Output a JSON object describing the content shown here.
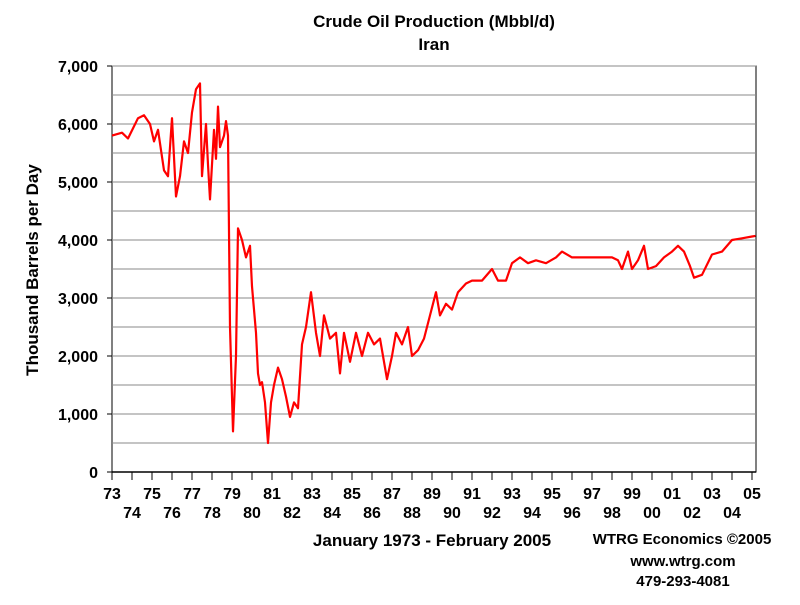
{
  "chart_data": {
    "type": "line",
    "title": "Crude Oil Production (Mbbl/d)",
    "subtitle": "Iran",
    "y_label": "Thousand Barrels per Day",
    "x_label": "January 1973 - February 2005",
    "annotations": [
      "WTRG Economics  ©2005",
      "www.wtrg.com",
      "479-293-4081"
    ],
    "xlim": [
      1973,
      2005.2
    ],
    "ylim": [
      0,
      7000
    ],
    "yticks": [
      0,
      {
        "value": 1000,
        "label": "1,000"
      },
      {
        "value": 2000,
        "label": "2,000"
      },
      {
        "value": 3000,
        "label": "3,000"
      },
      {
        "value": 4000,
        "label": "4,000"
      },
      {
        "value": 5000,
        "label": "5,000"
      },
      {
        "value": 6000,
        "label": "6,000"
      },
      {
        "value": 7000,
        "label": "7,000"
      }
    ],
    "yminor": [
      500,
      1500,
      2500,
      3500,
      4500,
      5500,
      6500
    ],
    "xticks": [
      {
        "value": 1973,
        "label": "73"
      },
      {
        "value": 1974,
        "label": "74"
      },
      {
        "value": 1975,
        "label": "75"
      },
      {
        "value": 1976,
        "label": "76"
      },
      {
        "value": 1977,
        "label": "77"
      },
      {
        "value": 1978,
        "label": "78"
      },
      {
        "value": 1979,
        "label": "79"
      },
      {
        "value": 1980,
        "label": "80"
      },
      {
        "value": 1981,
        "label": "81"
      },
      {
        "value": 1982,
        "label": "82"
      },
      {
        "value": 1983,
        "label": "83"
      },
      {
        "value": 1984,
        "label": "84"
      },
      {
        "value": 1985,
        "label": "85"
      },
      {
        "value": 1986,
        "label": "86"
      },
      {
        "value": 1987,
        "label": "87"
      },
      {
        "value": 1988,
        "label": "88"
      },
      {
        "value": 1989,
        "label": "89"
      },
      {
        "value": 1990,
        "label": "90"
      },
      {
        "value": 1991,
        "label": "91"
      },
      {
        "value": 1992,
        "label": "92"
      },
      {
        "value": 1993,
        "label": "93"
      },
      {
        "value": 1994,
        "label": "94"
      },
      {
        "value": 1995,
        "label": "95"
      },
      {
        "value": 1996,
        "label": "96"
      },
      {
        "value": 1997,
        "label": "97"
      },
      {
        "value": 1998,
        "label": "98"
      },
      {
        "value": 1999,
        "label": "99"
      },
      {
        "value": 2000,
        "label": "00"
      },
      {
        "value": 2001,
        "label": "01"
      },
      {
        "value": 2002,
        "label": "02"
      },
      {
        "value": 2003,
        "label": "03"
      },
      {
        "value": 2004,
        "label": "04"
      },
      {
        "value": 2005,
        "label": "05"
      }
    ],
    "grid": true,
    "x": [
      1973.0,
      1973.5,
      1973.8,
      1974.3,
      1974.6,
      1974.9,
      1975.1,
      1975.3,
      1975.6,
      1975.8,
      1976.0,
      1976.2,
      1976.4,
      1976.6,
      1976.8,
      1977.0,
      1977.2,
      1977.4,
      1977.5,
      1977.7,
      1977.8,
      1977.9,
      1978.1,
      1978.2,
      1978.3,
      1978.4,
      1978.6,
      1978.7,
      1978.8,
      1978.9,
      1979.05,
      1979.2,
      1979.3,
      1979.5,
      1979.7,
      1979.9,
      1980.0,
      1980.2,
      1980.3,
      1980.4,
      1980.5,
      1980.65,
      1980.8,
      1980.95,
      1981.1,
      1981.3,
      1981.5,
      1981.7,
      1981.9,
      1982.1,
      1982.3,
      1982.5,
      1982.7,
      1982.95,
      1983.2,
      1983.4,
      1983.6,
      1983.9,
      1984.2,
      1984.4,
      1984.6,
      1984.9,
      1985.2,
      1985.5,
      1985.8,
      1986.1,
      1986.4,
      1986.6,
      1986.75,
      1987.0,
      1987.2,
      1987.5,
      1987.8,
      1988.0,
      1988.3,
      1988.6,
      1988.9,
      1989.2,
      1989.4,
      1989.7,
      1990.0,
      1990.3,
      1990.7,
      1991.0,
      1991.5,
      1992.0,
      1992.3,
      1992.7,
      1993.0,
      1993.4,
      1993.8,
      1994.2,
      1994.7,
      1995.2,
      1995.5,
      1996.0,
      1996.5,
      1997.0,
      1997.5,
      1998.0,
      1998.3,
      1998.5,
      1998.8,
      1999.0,
      1999.3,
      1999.6,
      1999.8,
      2000.2,
      2000.6,
      2001.0,
      2001.3,
      2001.6,
      2001.9,
      2002.1,
      2002.5,
      2003.0,
      2003.5,
      2004.0,
      2004.5,
      2005.0,
      2005.17
    ],
    "series": [
      {
        "name": "Iran",
        "color": "#ff0000",
        "values": [
          5800,
          5850,
          5750,
          6100,
          6150,
          6000,
          5700,
          5900,
          5200,
          5100,
          6100,
          4750,
          5100,
          5700,
          5500,
          6200,
          6600,
          6700,
          5100,
          6000,
          5300,
          4700,
          5900,
          5400,
          6300,
          5600,
          5800,
          6050,
          5800,
          2500,
          700,
          2000,
          4200,
          4000,
          3700,
          3900,
          3200,
          2400,
          1700,
          1500,
          1550,
          1200,
          500,
          1200,
          1500,
          1800,
          1600,
          1300,
          950,
          1200,
          1100,
          2200,
          2500,
          3100,
          2400,
          2000,
          2700,
          2300,
          2400,
          1700,
          2400,
          1900,
          2400,
          2000,
          2400,
          2200,
          2300,
          1900,
          1600,
          2000,
          2400,
          2200,
          2500,
          2000,
          2100,
          2300,
          2700,
          3100,
          2700,
          2900,
          2800,
          3100,
          3250,
          3300,
          3300,
          3500,
          3300,
          3300,
          3600,
          3700,
          3600,
          3650,
          3600,
          3700,
          3800,
          3700,
          3700,
          3700,
          3700,
          3700,
          3650,
          3500,
          3800,
          3500,
          3650,
          3900,
          3500,
          3550,
          3700,
          3800,
          3900,
          3800,
          3550,
          3350,
          3400,
          3750,
          3800,
          4000,
          4030,
          4060,
          4070
        ]
      }
    ]
  }
}
